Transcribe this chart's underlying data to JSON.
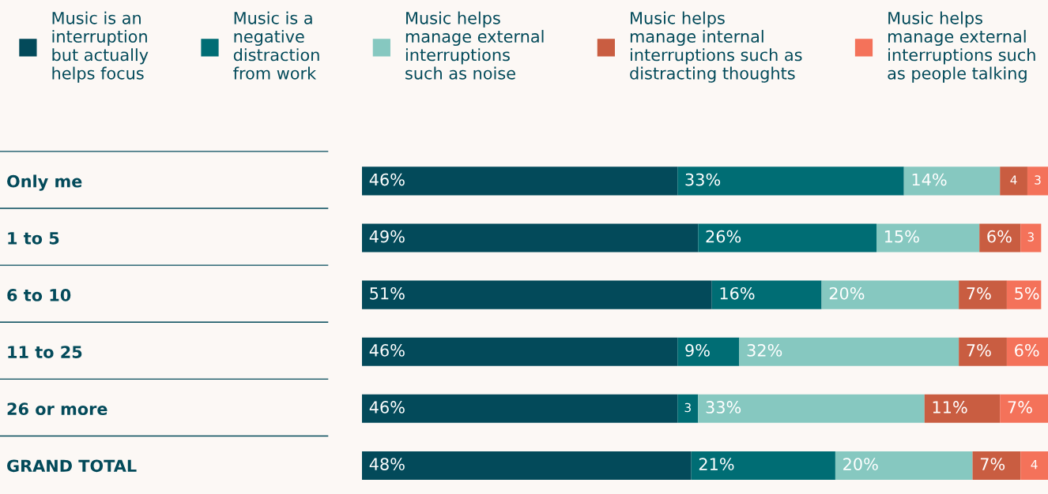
{
  "chart_data": {
    "type": "bar",
    "orientation": "horizontal",
    "stacked": true,
    "categories": [
      "Only me",
      "1 to 5",
      "6 to 10",
      "11 to 25",
      "26 or more",
      "GRAND TOTAL"
    ],
    "series": [
      {
        "name": "Music is an\ninterruption\nbut actually\nhelps focus",
        "color": "#034a5a",
        "values": [
          46,
          49,
          51,
          46,
          46,
          48
        ],
        "value_labels": [
          "46%",
          "49%",
          "51%",
          "46%",
          "46%",
          "48%"
        ]
      },
      {
        "name": "Music is a\nnegative\ndistraction\nfrom work",
        "color": "#006d74",
        "values": [
          33,
          26,
          16,
          9,
          3,
          21
        ],
        "value_labels": [
          "33%",
          "26%",
          "16%",
          "9%",
          "3",
          "21%"
        ]
      },
      {
        "name": "Music helps\nmanage external\ninterruptions\nsuch as noise",
        "color": "#86c8c0",
        "values": [
          14,
          15,
          20,
          32,
          33,
          20
        ],
        "value_labels": [
          "14%",
          "15%",
          "20%",
          "32%",
          "33%",
          "20%"
        ]
      },
      {
        "name": "Music helps\nmanage internal\ninterruptions such as\ndistracting thoughts",
        "color": "#c95d41",
        "values": [
          4,
          6,
          7,
          7,
          11,
          7
        ],
        "value_labels": [
          "4",
          "6%",
          "7%",
          "7%",
          "11%",
          "7%"
        ]
      },
      {
        "name": "Music helps\nmanage external\ninterruptions such\nas people talking",
        "color": "#f4725a",
        "values": [
          3,
          3,
          5,
          6,
          7,
          4
        ],
        "value_labels": [
          "3",
          "3",
          "5%",
          "6%",
          "7%",
          "4"
        ]
      }
    ],
    "xlim": [
      0,
      100
    ],
    "tick_labels": "y",
    "legend": "top",
    "grid": false
  }
}
